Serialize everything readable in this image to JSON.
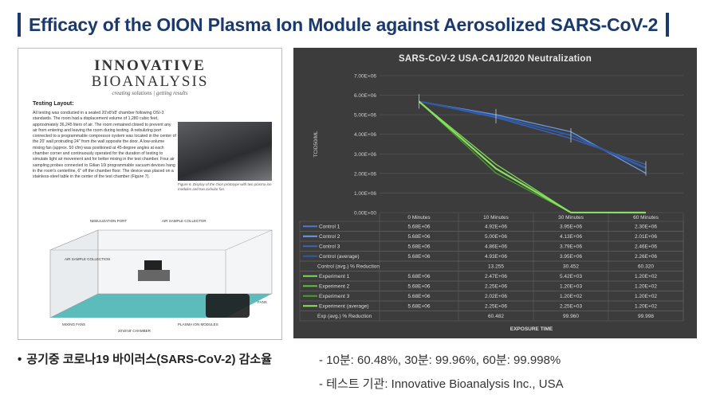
{
  "title": "Efficacy of the OION Plasma Ion Module against Aerosolized SARS-CoV-2",
  "document": {
    "logo_line1": "INNOVATIVE",
    "logo_line2": "BIOANALYSIS",
    "logo_tagline": "creating solutions | getting results",
    "heading": "Testing Layout:",
    "body": "All testing was conducted in a sealed 20'x8'x8' chamber following OSI-3 standards. The room had a displacement volume of 1,280 cubic feet, approximately 36,245 liters of air. The room remained closed to prevent any air from entering and leaving the room during testing. A nebulizing port connected to a programmable compressor system was located in the center of the 20' wall protruding 24\" from the wall opposite the door. A low-volume mixing fan (approx. 50 cfm) was positioned at 45-degree angles at each chamber corner and continuously operated for the duration of testing to simulate light air movement and for better mixing in the test chamber. Four air sampling probes connected to Gilian 10i programmable vacuum devices hang in the room's centerline, 6\" off the chamber floor. The device was placed on a stainless-steel table in the center of the test chamber (Figure 7).",
    "photo_caption": "Figure 6. Display of the Oion prototype with two plasma ion modules and two turbular fan.",
    "diagram_labels": [
      "NEBULIZATION PORT",
      "AIR SAMPLE COLLECTION",
      "AIR SAMPLE COLLECTOR",
      "FANS",
      "PLASMA ION MODULES",
      "MIXING FANS",
      "20'x8'x8' CHAMBER"
    ]
  },
  "chart_data": {
    "type": "line",
    "title": "SARS-CoV-2 USA-CA1/2020 Neutralization",
    "xlabel": "EXPOSURE TIME",
    "ylabel": "TCID50/ML",
    "categories": [
      "0 Minutes",
      "10 Minutes",
      "30 Minutes",
      "60 Minutes"
    ],
    "x_values_minutes": [
      0,
      10,
      30,
      60
    ],
    "ylim": [
      0,
      7000000
    ],
    "y_ticks": [
      "0.00E+00",
      "1.00E+06",
      "2.00E+06",
      "3.00E+06",
      "4.00E+06",
      "5.00E+06",
      "6.00E+06",
      "7.00E+06"
    ],
    "grid": true,
    "series": [
      {
        "name": "Control 1",
        "group": "control",
        "values": [
          5680000,
          4920000,
          3950000,
          2300000
        ],
        "labels": [
          "5.68E+06",
          "4.92E+06",
          "3.95E+06",
          "2.30E+06"
        ]
      },
      {
        "name": "Control 2",
        "group": "control",
        "values": [
          5680000,
          5000000,
          4130000,
          2010000
        ],
        "labels": [
          "5.68E+06",
          "5.00E+06",
          "4.13E+06",
          "2.01E+06"
        ]
      },
      {
        "name": "Control 3",
        "group": "control",
        "values": [
          5680000,
          4860000,
          3790000,
          2460000
        ],
        "labels": [
          "5.68E+06",
          "4.86E+06",
          "3.79E+06",
          "2.46E+06"
        ]
      },
      {
        "name": "Control (average)",
        "group": "control",
        "values": [
          5680000,
          4930000,
          3950000,
          2260000
        ],
        "labels": [
          "5.68E+06",
          "4.93E+06",
          "3.95E+06",
          "2.26E+06"
        ]
      },
      {
        "name": "Experiment 1",
        "group": "experiment",
        "values": [
          5680000,
          2470000,
          5420,
          120
        ],
        "labels": [
          "5.68E+06",
          "2.47E+06",
          "5.42E+03",
          "1.20E+02"
        ]
      },
      {
        "name": "Experiment 2",
        "group": "experiment",
        "values": [
          5680000,
          2250000,
          1200,
          120
        ],
        "labels": [
          "5.68E+06",
          "2.25E+06",
          "1.20E+03",
          "1.20E+02"
        ]
      },
      {
        "name": "Experiment 3",
        "group": "experiment",
        "values": [
          5680000,
          2020000,
          120,
          120
        ],
        "labels": [
          "5.68E+06",
          "2.02E+06",
          "1.20E+02",
          "1.20E+02"
        ]
      },
      {
        "name": "Experiment (average)",
        "group": "experiment",
        "values": [
          5680000,
          2250000,
          2250,
          120
        ],
        "labels": [
          "5.68E+06",
          "2.25E+06",
          "2.25E+03",
          "1.20E+02"
        ]
      }
    ],
    "table_rows": [
      {
        "name": "Control 1",
        "swatch": "#4a7bd0",
        "cells": [
          "5.68E+06",
          "4.92E+06",
          "3.95E+06",
          "2.30E+06"
        ]
      },
      {
        "name": "Control 2",
        "swatch": "#6c9be8",
        "cells": [
          "5.68E+06",
          "5.00E+06",
          "4.13E+06",
          "2.01E+06"
        ]
      },
      {
        "name": "Control 3",
        "swatch": "#3b65b8",
        "cells": [
          "5.68E+06",
          "4.86E+06",
          "3.79E+06",
          "2.46E+06"
        ]
      },
      {
        "name": "Control (average)",
        "swatch": "#2e5aa8",
        "cells": [
          "5.68E+06",
          "4.93E+06",
          "3.95E+06",
          "2.26E+06"
        ]
      },
      {
        "name": "Control (avg.) % Reduction",
        "swatch": "",
        "cells": [
          "",
          "13.255",
          "30.452",
          "60.320"
        ]
      },
      {
        "name": "Experiment 1",
        "swatch": "#7ed957",
        "cells": [
          "5.68E+06",
          "2.47E+06",
          "5.42E+03",
          "1.20E+02"
        ]
      },
      {
        "name": "Experiment 2",
        "swatch": "#5cbf3a",
        "cells": [
          "5.68E+06",
          "2.25E+06",
          "1.20E+03",
          "1.20E+02"
        ]
      },
      {
        "name": "Experiment 3",
        "swatch": "#4aa02c",
        "cells": [
          "5.68E+06",
          "2.02E+06",
          "1.20E+02",
          "1.20E+02"
        ]
      },
      {
        "name": "Experiment (average)",
        "swatch": "#8fe064",
        "cells": [
          "5.68E+06",
          "2.25E+06",
          "2.25E+03",
          "1.20E+02"
        ]
      },
      {
        "name": "Exp (avg.) % Reduction",
        "swatch": "",
        "cells": [
          "",
          "60.482",
          "99.960",
          "99.998"
        ]
      }
    ],
    "colors": {
      "control": "#4a7bd0",
      "experiment": "#7ed957",
      "background": "#3c3c3c",
      "grid": "#5a5a5a"
    }
  },
  "caption": {
    "bullet": "•",
    "label": "공기중 코로나19 바이러스(SARS-CoV-2) 감소율",
    "stat_reduction": "- 10분: 60.48%, 30분: 99.96%, 60분: 99.998%",
    "stat_lab": "- 테스트 기관: Innovative Bioanalysis Inc., USA"
  }
}
